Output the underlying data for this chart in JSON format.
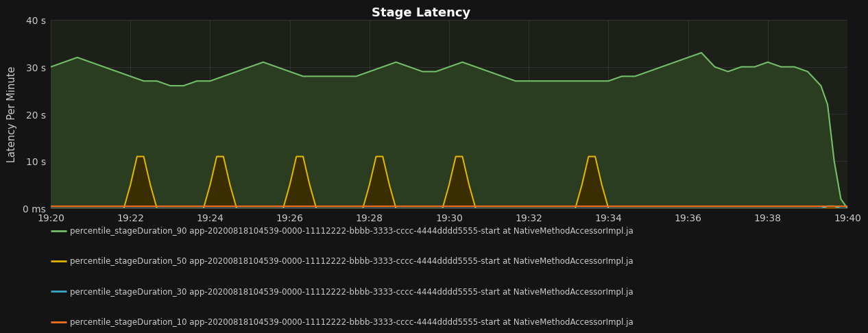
{
  "title": "Stage Latency",
  "ylabel": "Latency Per Minute",
  "background_color": "#141414",
  "plot_bg_color": "#1c2018",
  "grid_color": "#3a3a3a",
  "text_color": "#cccccc",
  "title_color": "#ffffff",
  "ylim": [
    0,
    40
  ],
  "yticks": [
    0,
    10,
    20,
    30,
    40
  ],
  "ytick_labels": [
    "0 ms",
    "10 s",
    "20 s",
    "30 s",
    "40 s"
  ],
  "xlim": [
    0,
    120
  ],
  "xtick_positions": [
    0,
    12,
    24,
    36,
    48,
    60,
    72,
    84,
    96,
    108,
    120
  ],
  "xtick_labels": [
    "19:20",
    "19:22",
    "19:24",
    "19:26",
    "19:28",
    "19:30",
    "19:32",
    "19:34",
    "19:36",
    "19:38",
    "19:40"
  ],
  "series": [
    {
      "name": "percentile_stageDuration_90 app-20200818104539-0000-11112222-bbbb-3333-cccc-4444dddd5555-start at NativeMethodAccessorImpl.ja",
      "color": "#73bf69",
      "fill_color": "#2a3d20",
      "linewidth": 1.5,
      "data_x": [
        0,
        2,
        4,
        6,
        8,
        10,
        12,
        14,
        16,
        18,
        20,
        22,
        24,
        26,
        28,
        30,
        32,
        34,
        36,
        38,
        40,
        42,
        44,
        46,
        48,
        50,
        52,
        54,
        56,
        58,
        60,
        62,
        64,
        66,
        68,
        70,
        72,
        74,
        76,
        78,
        80,
        82,
        84,
        86,
        88,
        90,
        92,
        94,
        96,
        98,
        100,
        102,
        104,
        106,
        108,
        110,
        112,
        114,
        116,
        117,
        118,
        119,
        120
      ],
      "data_y": [
        30,
        31,
        32,
        31,
        30,
        29,
        28,
        27,
        27,
        26,
        26,
        27,
        27,
        28,
        29,
        30,
        31,
        30,
        29,
        28,
        28,
        28,
        28,
        28,
        29,
        30,
        31,
        30,
        29,
        29,
        30,
        31,
        30,
        29,
        28,
        27,
        27,
        27,
        27,
        27,
        27,
        27,
        27,
        28,
        28,
        29,
        30,
        31,
        32,
        33,
        30,
        29,
        30,
        30,
        31,
        30,
        30,
        29,
        26,
        22,
        10,
        2,
        0
      ]
    },
    {
      "name": "percentile_stageDuration_50 app-20200818104539-0000-11112222-bbbb-3333-cccc-4444dddd5555-start at NativeMethodAccessorImpl.ja",
      "color": "#e0b400",
      "fill_color": "#3a2e00",
      "linewidth": 1.5,
      "data_x": [
        0,
        1,
        2,
        3,
        4,
        5,
        6,
        7,
        8,
        9,
        10,
        11,
        12,
        13,
        14,
        15,
        16,
        17,
        18,
        19,
        20,
        21,
        22,
        23,
        24,
        25,
        26,
        27,
        28,
        29,
        30,
        31,
        32,
        33,
        34,
        35,
        36,
        37,
        38,
        39,
        40,
        41,
        42,
        43,
        44,
        45,
        46,
        47,
        48,
        49,
        50,
        51,
        52,
        53,
        54,
        55,
        56,
        57,
        58,
        59,
        60,
        61,
        62,
        63,
        64,
        65,
        66,
        67,
        68,
        69,
        70,
        71,
        72,
        73,
        74,
        75,
        76,
        77,
        78,
        79,
        80,
        81,
        82,
        83,
        84,
        85,
        86,
        87,
        88,
        89,
        90,
        91,
        92,
        93,
        94,
        95,
        96,
        97,
        98,
        99,
        100,
        101,
        102,
        103,
        104,
        105,
        106,
        107,
        108,
        109,
        110,
        111,
        112,
        113,
        114,
        115,
        116,
        117,
        118,
        119,
        120
      ],
      "data_y": [
        0,
        0,
        0,
        0,
        0,
        0,
        0,
        0,
        0,
        0,
        0,
        0,
        5,
        11,
        11,
        5,
        0,
        0,
        0,
        0,
        0,
        0,
        0,
        0,
        5,
        11,
        11,
        5,
        0,
        0,
        0,
        0,
        0,
        0,
        0,
        0,
        5,
        11,
        11,
        5,
        0,
        0,
        0,
        0,
        0,
        0,
        0,
        0,
        5,
        11,
        11,
        5,
        0,
        0,
        0,
        0,
        0,
        0,
        0,
        0,
        5,
        11,
        11,
        5,
        0,
        0,
        0,
        0,
        0,
        0,
        0,
        0,
        0,
        0,
        0,
        0,
        0,
        0,
        0,
        0,
        5,
        11,
        11,
        5,
        0,
        0,
        0,
        0,
        0,
        0,
        0,
        0,
        0,
        0,
        0,
        0,
        0,
        0,
        0,
        0,
        0,
        0,
        0,
        0,
        0,
        0,
        0,
        0,
        0,
        0,
        0,
        0,
        0,
        0,
        0,
        0,
        0,
        0,
        0,
        0,
        0
      ]
    },
    {
      "name": "percentile_stageDuration_30 app-20200818104539-0000-11112222-bbbb-3333-cccc-4444dddd5555-start at NativeMethodAccessorImpl.ja",
      "color": "#37aacc",
      "fill_color": "#0a2530",
      "linewidth": 1.5,
      "data_x": [
        0,
        95,
        96,
        97,
        98,
        99,
        100,
        101,
        102,
        103,
        104,
        105,
        106,
        107,
        108,
        109,
        110,
        111,
        112,
        113,
        114,
        115,
        116,
        117,
        118,
        119,
        120
      ],
      "data_y": [
        0,
        0,
        0,
        0,
        0,
        0,
        0,
        0,
        0,
        0,
        0,
        0,
        0,
        0,
        0,
        0,
        0,
        0,
        0,
        0,
        0,
        0,
        0,
        0.5,
        0.5,
        0,
        0
      ]
    },
    {
      "name": "percentile_stageDuration_10 app-20200818104539-0000-11112222-bbbb-3333-cccc-4444dddd5555-start at NativeMethodAccessorImpl.ja",
      "color": "#f2711c",
      "fill_color": "#3a1a00",
      "linewidth": 1.5,
      "data_x": [
        0,
        120
      ],
      "data_y": [
        0.5,
        0.5
      ]
    }
  ],
  "legend_entries": [
    {
      "label": "percentile_stageDuration_90 app-20200818104539-0000-11112222-bbbb-3333-cccc-4444dddd5555-start at NativeMethodAccessorImpl.ja",
      "color": "#73bf69"
    },
    {
      "label": "percentile_stageDuration_50 app-20200818104539-0000-11112222-bbbb-3333-cccc-4444dddd5555-start at NativeMethodAccessorImpl.ja",
      "color": "#e0b400"
    },
    {
      "label": "percentile_stageDuration_30 app-20200818104539-0000-11112222-bbbb-3333-cccc-4444dddd5555-start at NativeMethodAccessorImpl.ja",
      "color": "#37aacc"
    },
    {
      "label": "percentile_stageDuration_10 app-20200818104539-0000-11112222-bbbb-3333-cccc-4444dddd5555-start at NativeMethodAccessorImpl.ja",
      "color": "#f2711c"
    }
  ]
}
